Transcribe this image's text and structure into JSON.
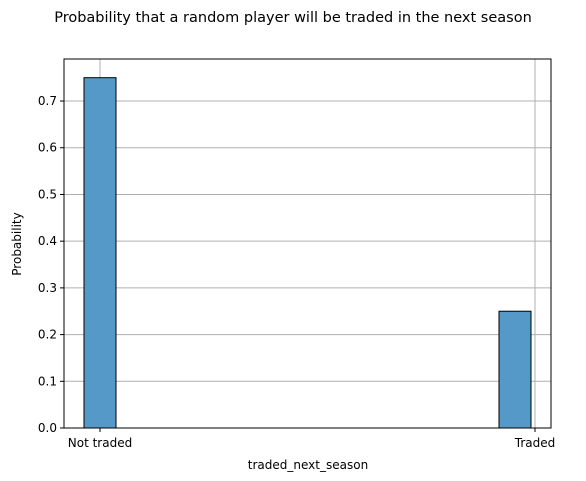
{
  "chart_data": {
    "type": "bar",
    "title": "Probability that a random player will be traded in the next season",
    "xlabel": "traded_next_season",
    "ylabel": "Probability",
    "categories": [
      "Not traded",
      "Traded"
    ],
    "values": [
      0.75,
      0.25
    ],
    "ylim": [
      0,
      0.79
    ],
    "yticks": [
      "0.0",
      "0.1",
      "0.2",
      "0.3",
      "0.4",
      "0.5",
      "0.6",
      "0.7"
    ],
    "grid": true,
    "bar_color": "#5499c7",
    "edge_color": "#000000",
    "grid_color": "#b0b0b0"
  }
}
